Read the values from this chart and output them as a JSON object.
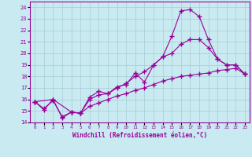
{
  "xlabel": "Windchill (Refroidissement éolien,°C)",
  "xlim": [
    -0.5,
    23.5
  ],
  "ylim": [
    14,
    24.5
  ],
  "yticks": [
    14,
    15,
    16,
    17,
    18,
    19,
    20,
    21,
    22,
    23,
    24
  ],
  "xticks": [
    0,
    1,
    2,
    3,
    4,
    5,
    6,
    7,
    8,
    9,
    10,
    11,
    12,
    13,
    14,
    15,
    16,
    17,
    18,
    19,
    20,
    21,
    22,
    23
  ],
  "bg_color": "#c8eaf0",
  "line_color": "#990099",
  "grid_color": "#a8cdd4",
  "upper_x": [
    0,
    1,
    2,
    3,
    4,
    5,
    6,
    7,
    8,
    9,
    10,
    11,
    12,
    13,
    14,
    15,
    16,
    17,
    18,
    19,
    20,
    21,
    22,
    23
  ],
  "upper_y": [
    15.8,
    15.1,
    16.0,
    14.4,
    14.9,
    14.8,
    16.2,
    16.7,
    16.5,
    17.1,
    17.3,
    18.3,
    17.5,
    19.0,
    19.7,
    21.5,
    23.7,
    23.8,
    23.2,
    21.2,
    19.5,
    19.0,
    19.0,
    18.2
  ],
  "mid_x": [
    0,
    2,
    4,
    5,
    6,
    7,
    8,
    9,
    10,
    11,
    12,
    13,
    14,
    15,
    16,
    17,
    18,
    19,
    20,
    21,
    22,
    23
  ],
  "mid_y": [
    15.8,
    16.0,
    14.9,
    14.8,
    16.0,
    16.4,
    16.5,
    17.0,
    17.4,
    18.0,
    18.4,
    19.0,
    19.7,
    20.0,
    20.8,
    21.2,
    21.2,
    20.5,
    19.5,
    19.0,
    19.0,
    18.2
  ],
  "low_x": [
    0,
    1,
    2,
    3,
    4,
    5,
    6,
    7,
    8,
    9,
    10,
    11,
    12,
    13,
    14,
    15,
    16,
    17,
    18,
    19,
    20,
    21,
    22,
    23
  ],
  "low_y": [
    15.8,
    15.2,
    15.9,
    14.5,
    14.9,
    14.8,
    15.4,
    15.7,
    16.0,
    16.3,
    16.5,
    16.8,
    17.0,
    17.3,
    17.6,
    17.8,
    18.0,
    18.1,
    18.2,
    18.3,
    18.5,
    18.6,
    18.7,
    18.2
  ]
}
